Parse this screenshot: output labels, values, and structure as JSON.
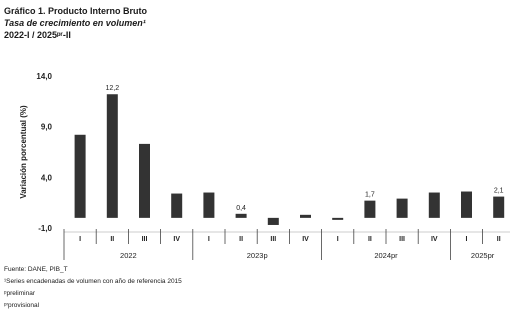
{
  "chart_data": {
    "type": "bar",
    "title": "Gráfico 1. Producto Interno Bruto",
    "subtitle": "Tasa de crecimiento en volumen¹",
    "period": "2022-I / 2025ᵖʳ-II",
    "ylabel": "Variación porcentual (%)",
    "ylim": [
      -1.0,
      14.0
    ],
    "yticks": [
      -1.0,
      4.0,
      9.0,
      14.0
    ],
    "ytick_labels": [
      "-1,0",
      "4,0",
      "9,0",
      "14,0"
    ],
    "categories": [
      "I",
      "II",
      "III",
      "IV",
      "I",
      "II",
      "III",
      "IV",
      "I",
      "II",
      "III",
      "IV",
      "I",
      "II"
    ],
    "values": [
      8.2,
      12.2,
      7.3,
      2.4,
      2.5,
      0.4,
      -0.7,
      0.3,
      0.0,
      1.7,
      1.9,
      2.5,
      2.6,
      2.1
    ],
    "data_labels": [
      {
        "index": 1,
        "text": "12,2"
      },
      {
        "index": 5,
        "text": "0,4"
      },
      {
        "index": 9,
        "text": "1,7"
      },
      {
        "index": 13,
        "text": "2,1"
      }
    ],
    "groups": [
      {
        "label": "2022",
        "start": 0,
        "end": 3
      },
      {
        "label": "2023p",
        "start": 4,
        "end": 7
      },
      {
        "label": "2024pr",
        "start": 8,
        "end": 11
      },
      {
        "label": "2025pr",
        "start": 12,
        "end": 13
      }
    ],
    "bar_color": "#333333",
    "grid": false
  },
  "footnotes": {
    "source": "Fuente: DANE, PIB_T",
    "note1": "¹Series encadenadas de volumen con año de referencia 2015",
    "note2": "ᵖpreliminar",
    "note3": "ᵖʳprovisional"
  }
}
